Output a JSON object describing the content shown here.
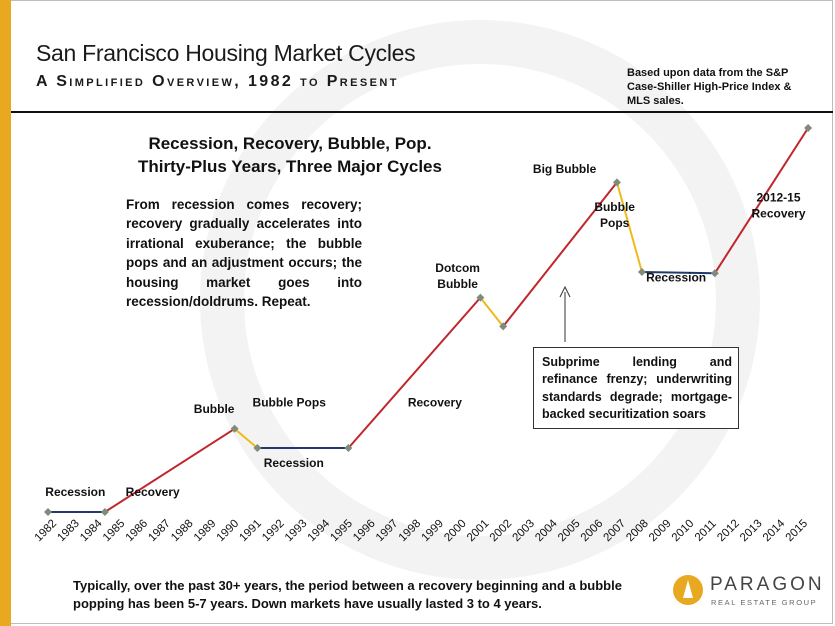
{
  "title": "San Francisco Housing Market Cycles",
  "subtitle": "A Simplified Overview, 1982 to Present",
  "source_note": "Based upon data from the S&P Case-Shiller High-Price Index & MLS sales.",
  "headline": [
    "Recession, Recovery, Bubble, Pop.",
    "Thirty-Plus Years, Three Major Cycles"
  ],
  "paragraph": "From recession comes recovery; recovery gradually accelerates into irrational exuberance; the bubble pops and an adjustment occurs; the housing market goes into recession/doldrums. Repeat.",
  "subprime_note": "Subprime lending and refinance frenzy; underwriting standards degrade; mortgage-backed securitization soars",
  "footer_text": "Typically, over the past 30+ years, the period between a recovery beginning and a bubble popping has been 5-7 years. Down markets have usually lasted 3 to 4 years.",
  "logo": {
    "name": "PARAGON",
    "tagline": "REAL ESTATE GROUP"
  },
  "colors": {
    "recovery": "#c0262b",
    "pop": "#f0b91b",
    "recession": "#1f3a6b",
    "point": "#7f8c7b",
    "accent": "#e8a820"
  },
  "chart_data": {
    "type": "line",
    "title": "San Francisco Housing Market Cycles",
    "xlabel": "",
    "ylabel": "",
    "categories": [
      "1982",
      "1983",
      "1984",
      "1985",
      "1986",
      "1987",
      "1988",
      "1989",
      "1990",
      "1991",
      "1992",
      "1993",
      "1994",
      "1995",
      "1996",
      "1997",
      "1998",
      "1999",
      "2000",
      "2001",
      "2002",
      "2003",
      "2004",
      "2005",
      "2006",
      "2007",
      "2008",
      "2009",
      "2010",
      "2011",
      "2012",
      "2013",
      "2014",
      "2015"
    ],
    "points": [
      {
        "x": 1982.0,
        "y": 0
      },
      {
        "x": 1984.5,
        "y": 0
      },
      {
        "x": 1990.2,
        "y": 26
      },
      {
        "x": 1991.2,
        "y": 20
      },
      {
        "x": 1995.2,
        "y": 20
      },
      {
        "x": 2001.0,
        "y": 67
      },
      {
        "x": 2002.0,
        "y": 58
      },
      {
        "x": 2007.0,
        "y": 103
      },
      {
        "x": 2008.1,
        "y": 75
      },
      {
        "x": 2011.3,
        "y": 74.6
      },
      {
        "x": 2015.4,
        "y": 120
      }
    ],
    "segments": [
      {
        "from": 0,
        "to": 1,
        "phase": "recession"
      },
      {
        "from": 1,
        "to": 2,
        "phase": "recovery"
      },
      {
        "from": 2,
        "to": 3,
        "phase": "pop"
      },
      {
        "from": 3,
        "to": 4,
        "phase": "recession"
      },
      {
        "from": 4,
        "to": 5,
        "phase": "recovery"
      },
      {
        "from": 5,
        "to": 6,
        "phase": "pop"
      },
      {
        "from": 6,
        "to": 7,
        "phase": "recovery"
      },
      {
        "from": 7,
        "to": 8,
        "phase": "pop"
      },
      {
        "from": 8,
        "to": 9,
        "phase": "recession"
      },
      {
        "from": 9,
        "to": 10,
        "phase": "recovery"
      }
    ],
    "annotations": [
      {
        "text": "Recession",
        "x": 1983.2,
        "y": 5
      },
      {
        "text": "Recovery",
        "x": 1986.6,
        "y": 5
      },
      {
        "text": "Bubble",
        "x": 1989.3,
        "y": 31
      },
      {
        "text": "Bubble Pops",
        "x": 1992.6,
        "y": 33
      },
      {
        "text": "Recession",
        "x": 1992.8,
        "y": 14
      },
      {
        "text": "Recovery",
        "x": 1999.0,
        "y": 33
      },
      {
        "text": "Dotcom",
        "x": 2000.0,
        "y": 75
      },
      {
        "text": "Bubble",
        "x": 2000.0,
        "y": 70
      },
      {
        "text": "Big Bubble",
        "x": 2004.7,
        "y": 106
      },
      {
        "text": "Bubble",
        "x": 2006.9,
        "y": 94
      },
      {
        "text": "Pops",
        "x": 2006.9,
        "y": 89
      },
      {
        "text": "Recession",
        "x": 2009.6,
        "y": 72
      },
      {
        "text": "2012-15",
        "x": 2014.1,
        "y": 97
      },
      {
        "text": "Recovery",
        "x": 2014.1,
        "y": 92
      }
    ],
    "xlim": [
      1982,
      2015
    ],
    "ylim": [
      0,
      120
    ],
    "grid": false,
    "legend": "none"
  }
}
